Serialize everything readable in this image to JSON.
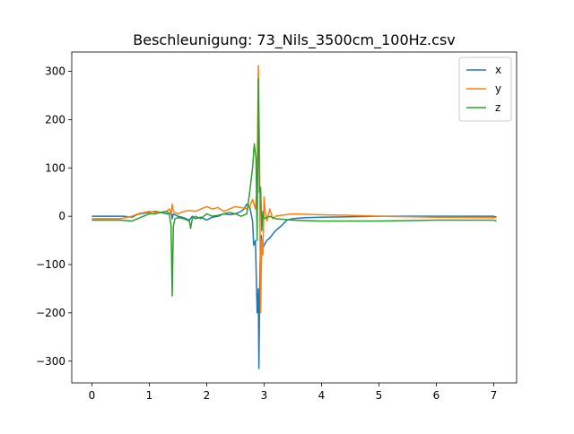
{
  "chart_data": {
    "type": "line",
    "title": "Beschleunigung: 73_Nils_3500cm_100Hz.csv",
    "xlabel": "",
    "ylabel": "",
    "xlim": [
      -0.35,
      7.4
    ],
    "ylim": [
      -345,
      340
    ],
    "x_ticks": [
      0,
      1,
      2,
      3,
      4,
      5,
      6,
      7
    ],
    "y_ticks": [
      -300,
      -200,
      -100,
      0,
      100,
      200,
      300
    ],
    "grid": false,
    "legend_position": "top-right",
    "series": [
      {
        "name": "x",
        "color": "#1f77b4",
        "points": [
          [
            0.0,
            0
          ],
          [
            0.3,
            0
          ],
          [
            0.55,
            0
          ],
          [
            0.7,
            -2
          ],
          [
            0.8,
            4
          ],
          [
            1.0,
            8
          ],
          [
            1.1,
            10
          ],
          [
            1.2,
            8
          ],
          [
            1.3,
            5
          ],
          [
            1.35,
            5
          ],
          [
            1.38,
            10
          ],
          [
            1.4,
            -5
          ],
          [
            1.42,
            5
          ],
          [
            1.5,
            0
          ],
          [
            1.6,
            -3
          ],
          [
            1.7,
            -8
          ],
          [
            1.75,
            0
          ],
          [
            1.8,
            -5
          ],
          [
            1.9,
            -2
          ],
          [
            2.0,
            -8
          ],
          [
            2.1,
            -2
          ],
          [
            2.2,
            0
          ],
          [
            2.3,
            5
          ],
          [
            2.4,
            3
          ],
          [
            2.5,
            5
          ],
          [
            2.6,
            10
          ],
          [
            2.65,
            15
          ],
          [
            2.7,
            25
          ],
          [
            2.75,
            20
          ],
          [
            2.8,
            -10
          ],
          [
            2.82,
            -60
          ],
          [
            2.85,
            -50
          ],
          [
            2.88,
            -200
          ],
          [
            2.9,
            -150
          ],
          [
            2.91,
            -315
          ],
          [
            2.93,
            -100
          ],
          [
            2.95,
            -40
          ],
          [
            2.97,
            -70
          ],
          [
            3.0,
            -60
          ],
          [
            3.05,
            -50
          ],
          [
            3.1,
            -45
          ],
          [
            3.2,
            -30
          ],
          [
            3.3,
            -20
          ],
          [
            3.4,
            -8
          ],
          [
            3.5,
            -5
          ],
          [
            3.7,
            -3
          ],
          [
            4.0,
            -2
          ],
          [
            5.0,
            0
          ],
          [
            6.0,
            0
          ],
          [
            7.0,
            0
          ],
          [
            7.05,
            -2
          ]
        ]
      },
      {
        "name": "y",
        "color": "#ff7f0e",
        "points": [
          [
            0.0,
            -5
          ],
          [
            0.5,
            -5
          ],
          [
            0.7,
            0
          ],
          [
            0.8,
            5
          ],
          [
            1.0,
            10
          ],
          [
            1.1,
            8
          ],
          [
            1.2,
            8
          ],
          [
            1.3,
            10
          ],
          [
            1.35,
            15
          ],
          [
            1.38,
            5
          ],
          [
            1.4,
            25
          ],
          [
            1.42,
            10
          ],
          [
            1.5,
            5
          ],
          [
            1.6,
            10
          ],
          [
            1.7,
            12
          ],
          [
            1.8,
            10
          ],
          [
            1.9,
            15
          ],
          [
            2.0,
            20
          ],
          [
            2.1,
            15
          ],
          [
            2.2,
            18
          ],
          [
            2.3,
            10
          ],
          [
            2.4,
            15
          ],
          [
            2.5,
            20
          ],
          [
            2.6,
            18
          ],
          [
            2.7,
            15
          ],
          [
            2.75,
            20
          ],
          [
            2.8,
            35
          ],
          [
            2.85,
            15
          ],
          [
            2.88,
            60
          ],
          [
            2.9,
            312
          ],
          [
            2.92,
            150
          ],
          [
            2.94,
            -200
          ],
          [
            2.96,
            -50
          ],
          [
            2.98,
            -80
          ],
          [
            3.0,
            40
          ],
          [
            3.02,
            10
          ],
          [
            3.05,
            -10
          ],
          [
            3.1,
            15
          ],
          [
            3.15,
            -5
          ],
          [
            3.2,
            0
          ],
          [
            3.3,
            2
          ],
          [
            3.5,
            5
          ],
          [
            4.0,
            3
          ],
          [
            4.5,
            2
          ],
          [
            5.0,
            0
          ],
          [
            6.0,
            -2
          ],
          [
            7.0,
            -3
          ],
          [
            7.05,
            -3
          ]
        ]
      },
      {
        "name": "z",
        "color": "#2ca02c",
        "points": [
          [
            0.0,
            -8
          ],
          [
            0.5,
            -8
          ],
          [
            0.7,
            -10
          ],
          [
            0.8,
            -5
          ],
          [
            0.9,
            0
          ],
          [
            1.0,
            5
          ],
          [
            1.1,
            5
          ],
          [
            1.2,
            8
          ],
          [
            1.3,
            10
          ],
          [
            1.35,
            5
          ],
          [
            1.38,
            -20
          ],
          [
            1.4,
            -165
          ],
          [
            1.42,
            -20
          ],
          [
            1.45,
            -5
          ],
          [
            1.5,
            -3
          ],
          [
            1.6,
            -5
          ],
          [
            1.7,
            -10
          ],
          [
            1.72,
            -25
          ],
          [
            1.75,
            -5
          ],
          [
            1.8,
            0
          ],
          [
            1.9,
            -5
          ],
          [
            2.0,
            5
          ],
          [
            2.1,
            0
          ],
          [
            2.2,
            2
          ],
          [
            2.3,
            5
          ],
          [
            2.4,
            8
          ],
          [
            2.5,
            5
          ],
          [
            2.6,
            0
          ],
          [
            2.7,
            5
          ],
          [
            2.75,
            50
          ],
          [
            2.8,
            100
          ],
          [
            2.83,
            150
          ],
          [
            2.86,
            120
          ],
          [
            2.88,
            -50
          ],
          [
            2.9,
            285
          ],
          [
            2.92,
            50
          ],
          [
            2.94,
            60
          ],
          [
            2.96,
            -30
          ],
          [
            2.98,
            10
          ],
          [
            3.0,
            -5
          ],
          [
            3.1,
            0
          ],
          [
            3.2,
            -5
          ],
          [
            3.5,
            -8
          ],
          [
            4.0,
            -10
          ],
          [
            5.0,
            -10
          ],
          [
            6.0,
            -8
          ],
          [
            7.0,
            -8
          ],
          [
            7.05,
            -10
          ]
        ]
      }
    ]
  }
}
